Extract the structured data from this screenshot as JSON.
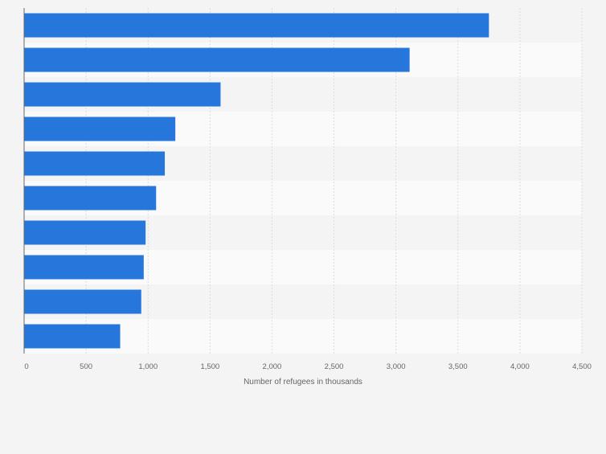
{
  "chart_data": {
    "type": "bar",
    "orientation": "horizontal",
    "categories": [
      "",
      "",
      "",
      "",
      "",
      "",
      "",
      "",
      "",
      ""
    ],
    "values": [
      3750,
      3110,
      1585,
      1220,
      1135,
      1065,
      980,
      965,
      945,
      775
    ],
    "xlabel": "Number of refugees in thousands",
    "ylabel": "",
    "xlim": [
      0,
      4500
    ],
    "xticks": [
      0,
      500,
      1000,
      1500,
      2000,
      2500,
      3000,
      3500,
      4000,
      4500
    ],
    "xtick_labels": [
      "0",
      "500",
      "1,000",
      "1,500",
      "2,000",
      "2,500",
      "3,000",
      "3,500",
      "4,000",
      "4,500"
    ],
    "grid": true,
    "legend": "none",
    "bar_color": "#2776dc",
    "band_colors": [
      "#f4f4f4",
      "#fafafa"
    ],
    "background": "#f4f4f4",
    "gridline_color": "#dcdcdc",
    "axis_color": "#666666",
    "text_color": "#666666"
  }
}
